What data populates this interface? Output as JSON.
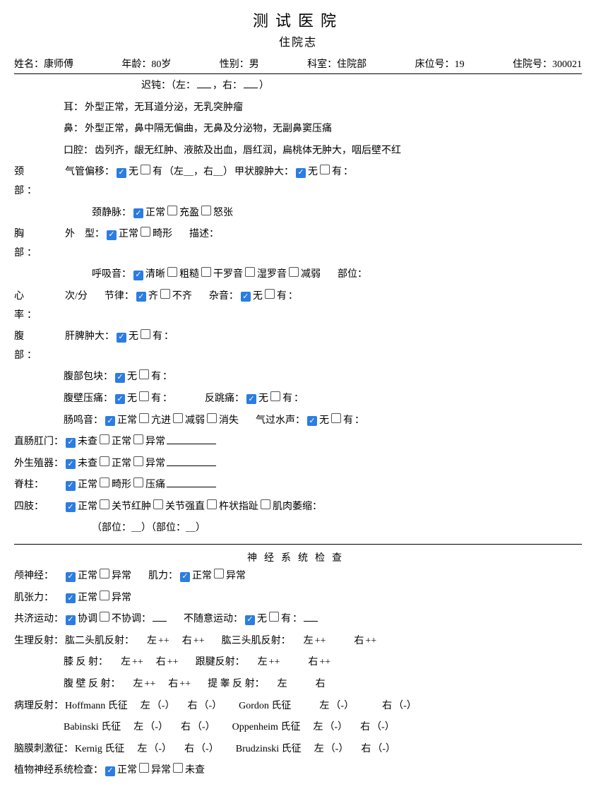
{
  "colors": {
    "checkbox_checked_bg": "#2b7de1",
    "text": "#000000",
    "background": "#ffffff"
  },
  "header": {
    "hospital": "测试医院",
    "doc_title": "住院志",
    "patient": {
      "name_lbl": "姓名：",
      "name": "康师傅",
      "age_lbl": "年龄：",
      "age": "80岁",
      "sex_lbl": "性别：",
      "sex": "男",
      "dept_lbl": "科室：",
      "dept": "住院部",
      "bed_lbl": "床位号：",
      "bed": "19",
      "adm_lbl": "住院号：",
      "adm": "300021"
    }
  },
  "phys": {
    "dull_label": "迟钝：（左：",
    "dull_mid": "，右：",
    "dull_end": "）",
    "ear_lbl": "耳：",
    "ear_txt": "外型正常，无耳道分泌，无乳突肿瘤",
    "nose_lbl": "鼻：",
    "nose_txt": "外型正常，鼻中隔无偏曲，无鼻及分泌物，无副鼻窦压痛",
    "mouth_lbl": "口腔：",
    "mouth_txt": "齿列齐，龈无红肿、液脓及出血，唇红润，扁桃体无肿大，咽后壁不红",
    "neck_lbl": "颈　部：",
    "neck_txt1": "气管偏移：",
    "none": "无",
    "have": "有",
    "thy_txt": "甲状腺肿大：",
    "neck_lr": "（左＿，右＿）",
    "jug_lbl": "颈静脉：",
    "jug_normal": "正常",
    "jug_full": "充盈",
    "jug_ang": "怒张",
    "chest_lbl": "胸　部：",
    "shape_lbl": "外　型：",
    "normal": "正常",
    "deform": "畸形",
    "desc": "描述：",
    "breath_lbl": "呼吸音：",
    "clear": "清晰",
    "coarse": "粗糙",
    "dry": "干罗音",
    "wet": "湿罗音",
    "weak": "减弱",
    "site": "部位：",
    "heart_lbl": "心　率：",
    "hr_txt": "次/分",
    "rhythm_lbl": "节律：",
    "even": "齐",
    "uneven": "不齐",
    "murmur": "杂音：",
    "abd_lbl": "腹　部：",
    "liver_lbl": "肝脾肿大：",
    "mass_lbl": "腹部包块：",
    "tender_lbl": "腹壁压痛：",
    "rebound_lbl": "反跳痛：",
    "bowel_lbl": "肠鸣音：",
    "hyper": "亢进",
    "disappear": "消失",
    "gas_lbl": "气过水声：",
    "rectum_lbl": "直肠肛门：",
    "notexam": "未查",
    "abnormal": "异常",
    "genital_lbl": "外生殖器：",
    "spine_lbl": "脊柱：",
    "tender2": "压痛",
    "limbs_lbl": "四肢：",
    "joint_red": "关节红肿",
    "joint_stiff": "关节强直",
    "club": "杵状指趾",
    "atrophy": "肌肉萎缩：",
    "limb_sites": "（部位：＿）（部位：＿）"
  },
  "neuro": {
    "title": "神经系统检查",
    "cranial_lbl": "颅神经：",
    "muscle_lbl": "肌力：",
    "tone_lbl": "肌张力：",
    "coord_lbl": "共济运动：",
    "coord_ok": "协调",
    "coord_no": "不协调：",
    "invol_lbl": "不随意运动：",
    "phys_reflex_lbl": "生理反射：",
    "biceps": "肱二头肌反射：",
    "triceps": "肱三头肌反射：",
    "knee": "膝 反 射：",
    "achilles": "跟腱反射：",
    "abdr": "腹 壁 反 射：",
    "crem": "提 睾 反 射：",
    "left": "左",
    "right": "右",
    "pp": "++",
    "neg": "（-）",
    "path_lbl": "病理反射：",
    "hoff": "Hoffmann 氏征",
    "gordon": "Gordon 氏征",
    "bab": "Babinski 氏征",
    "opp": "Oppenheim 氏征",
    "mening_lbl": "脑膜刺激征：",
    "kernig": "Kernig 氏征",
    "brud": "Brudzinski 氏征",
    "auto_lbl": "植物神经系统检查："
  }
}
